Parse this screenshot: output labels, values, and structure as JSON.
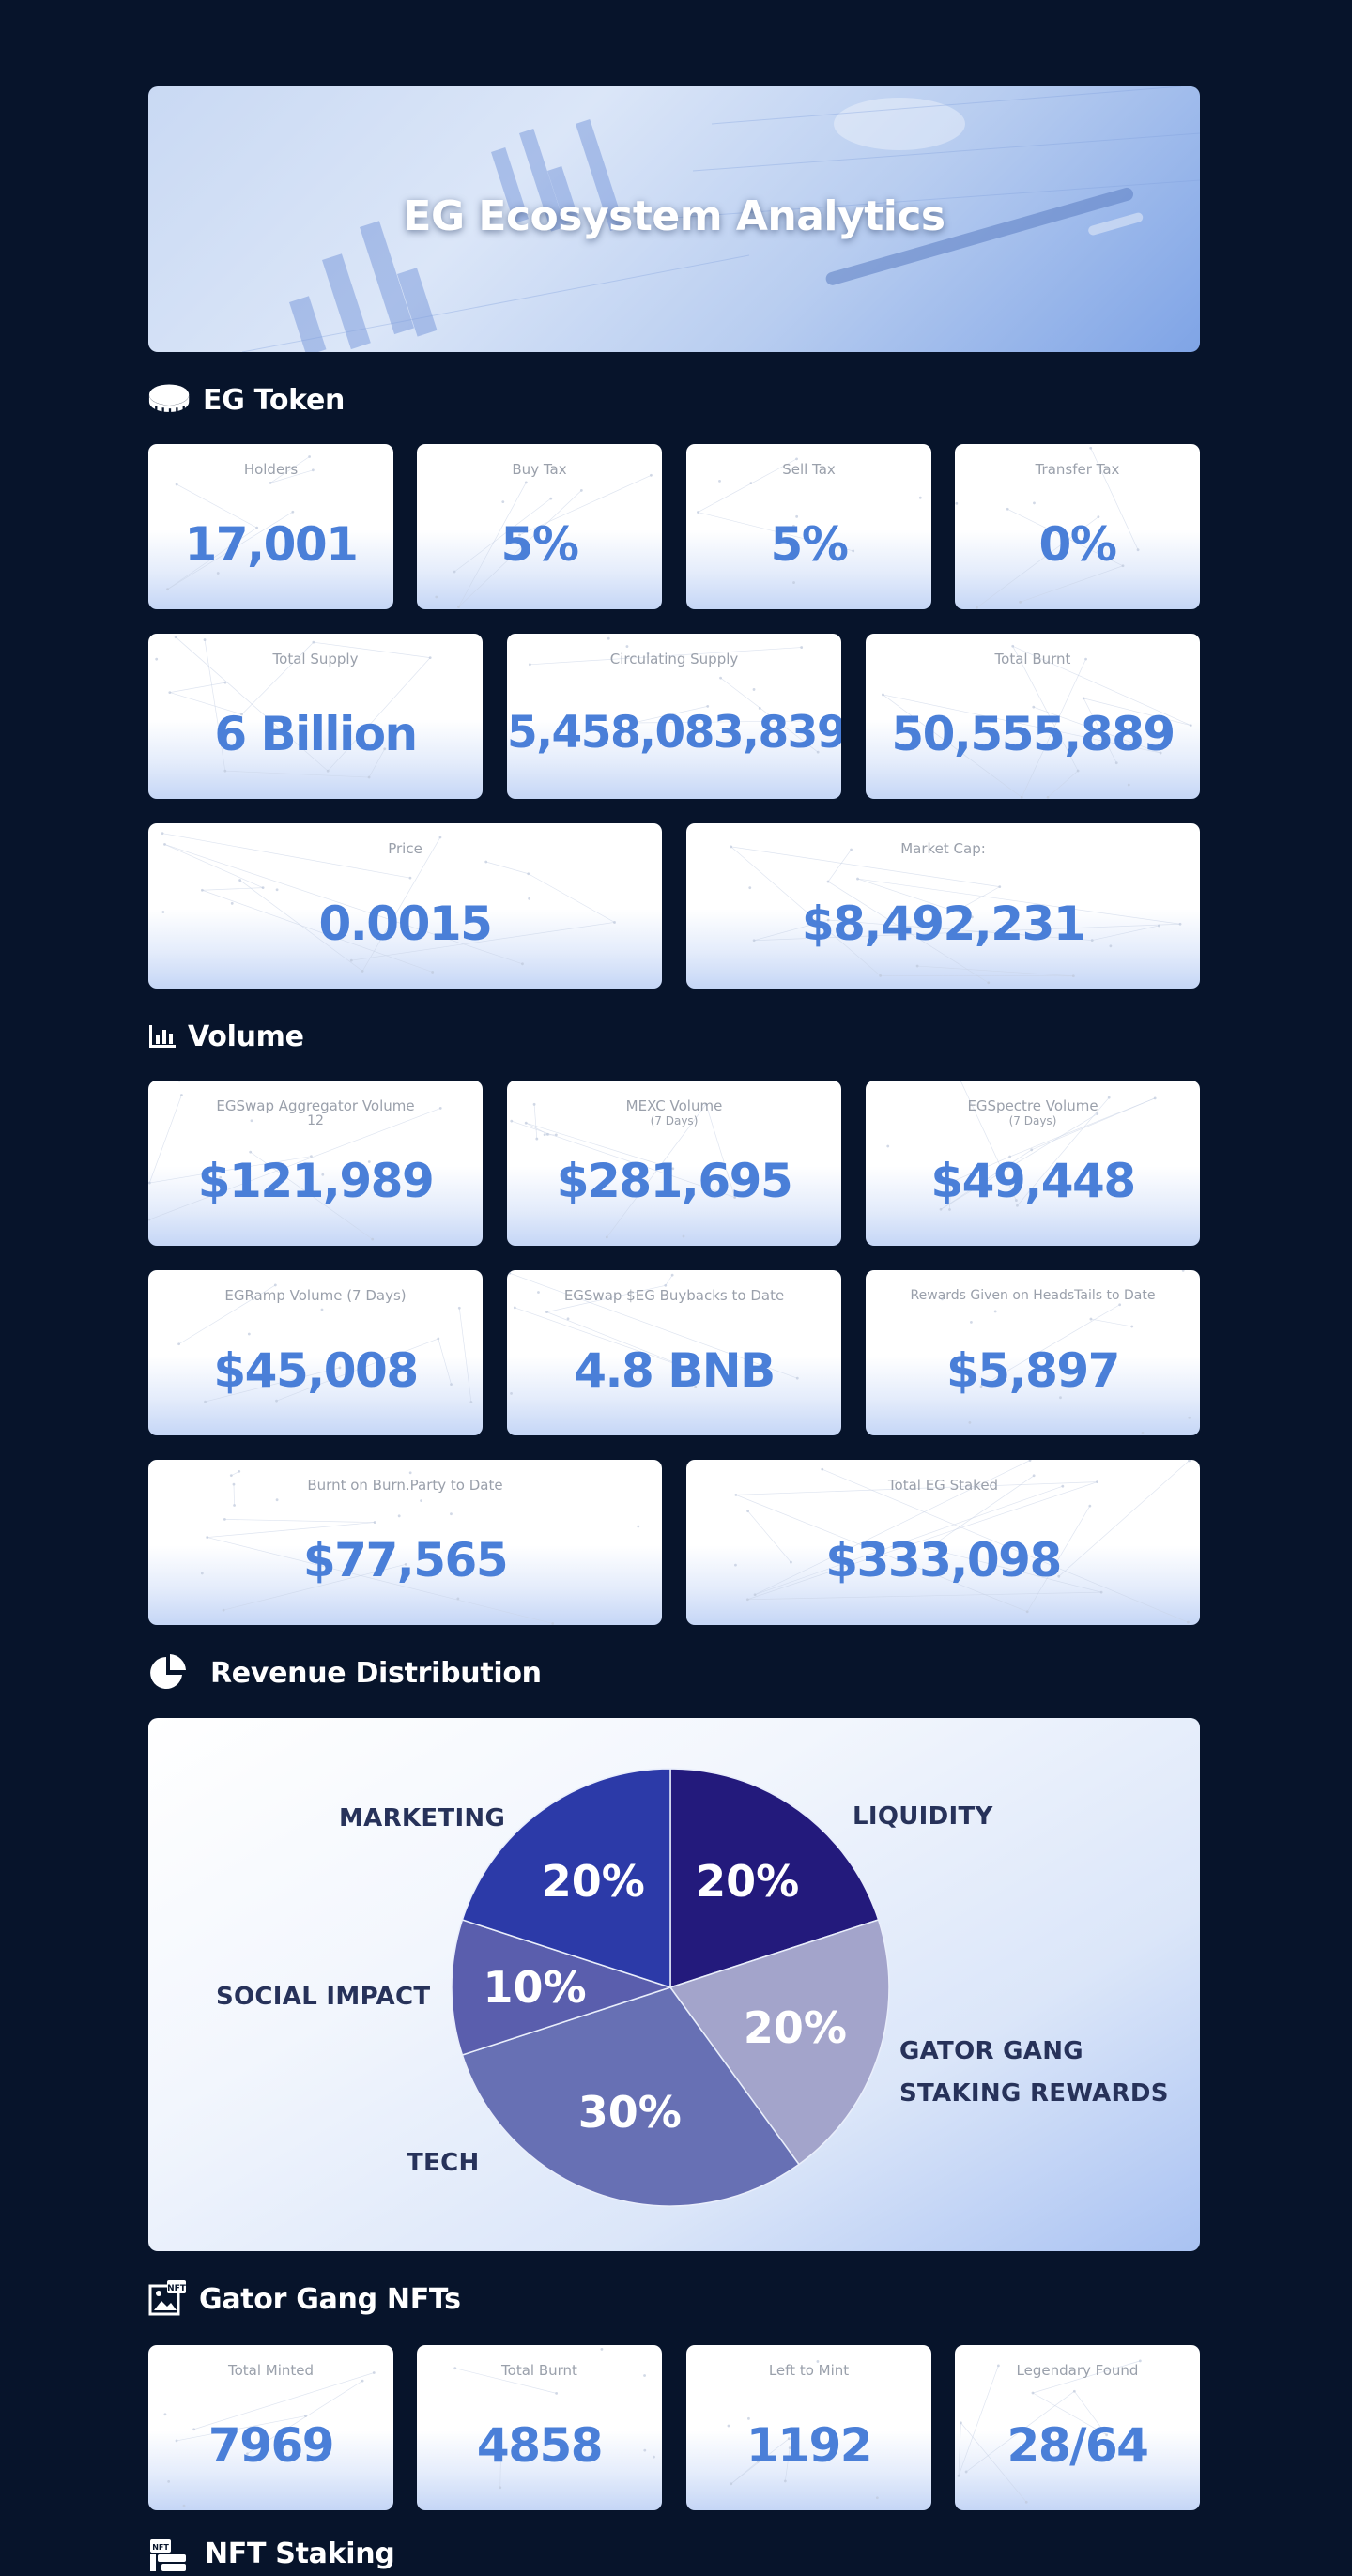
{
  "hero": {
    "title": "EG Ecosystem Analytics"
  },
  "sections": {
    "token": "EG Token",
    "volume": "Volume",
    "revenue": "Revenue Distribution",
    "nfts": "Gator Gang NFTs",
    "staking": "NFT Staking"
  },
  "token_stats": [
    {
      "label": "Holders",
      "value": "17,001"
    },
    {
      "label": "Buy Tax",
      "value": "5%"
    },
    {
      "label": "Sell Tax",
      "value": "5%"
    },
    {
      "label": "Transfer Tax",
      "value": "0%"
    },
    {
      "label": "Total Supply",
      "value": "6 Billion"
    },
    {
      "label": "Circulating Supply",
      "value": "5,458,083,839"
    },
    {
      "label": "Total Burnt",
      "value": "50,555,889"
    },
    {
      "label": "Price",
      "value": "0.0015"
    },
    {
      "label": "Market Cap:",
      "value": "$8,492,231"
    }
  ],
  "volume_stats": [
    {
      "label": "EGSwap Aggregator Volume",
      "sub": "12",
      "value": "$121,989"
    },
    {
      "label": "MEXC Volume",
      "sub": "(7 Days)",
      "value": "$281,695"
    },
    {
      "label": "EGSpectre Volume",
      "sub": "(7 Days)",
      "value": "$49,448"
    },
    {
      "label": "EGRamp Volume (7 Days)",
      "value": "$45,008"
    },
    {
      "label": "EGSwap $EG Buybacks to Date",
      "value": "4.8 BNB"
    },
    {
      "label": "Rewards Given on HeadsTails to Date",
      "value": "$5,897"
    },
    {
      "label": "Burnt on Burn.Party to Date",
      "value": "$77,565"
    },
    {
      "label": "Total EG Staked",
      "value": "$333,098"
    }
  ],
  "chart_data": {
    "type": "pie",
    "title": "",
    "slices": [
      {
        "label": "LIQUIDITY",
        "value": 20,
        "display": "20%",
        "color": "#231a7c"
      },
      {
        "label": "GATOR GANG STAKING REWARDS",
        "value": 20,
        "display": "20%",
        "color": "#a3a4cb"
      },
      {
        "label": "TECH",
        "value": 30,
        "display": "30%",
        "color": "#6770b4"
      },
      {
        "label": "SOCIAL IMPACT",
        "value": 10,
        "display": "10%",
        "color": "#5a5ead"
      },
      {
        "label": "MARKETING",
        "value": 20,
        "display": "20%",
        "color": "#2c3aa8"
      }
    ],
    "legend": "labels around pie"
  },
  "pie_labels": {
    "marketing": "MARKETING",
    "liquidity": "LIQUIDITY",
    "social": "SOCIAL IMPACT",
    "gator_line1": "GATOR GANG",
    "gator_line2": "STAKING REWARDS",
    "tech": "TECH"
  },
  "nft_stats": [
    {
      "label": "Total Minted",
      "value": "7969"
    },
    {
      "label": "Total Burnt",
      "value": "4858"
    },
    {
      "label": "Left to Mint",
      "value": "1192"
    },
    {
      "label": "Legendary Found",
      "value": "28/64"
    }
  ],
  "colors": {
    "background": "#07142b",
    "value_blue": "#4a7fd8",
    "label_grey": "#9aa0ab",
    "pie_label": "#27325a"
  },
  "icons": {
    "token": "coin-stack-icon",
    "volume": "bar-chart-icon",
    "revenue": "pie-chart-icon",
    "nfts": "nft-image-icon",
    "staking": "nft-staking-icon"
  }
}
